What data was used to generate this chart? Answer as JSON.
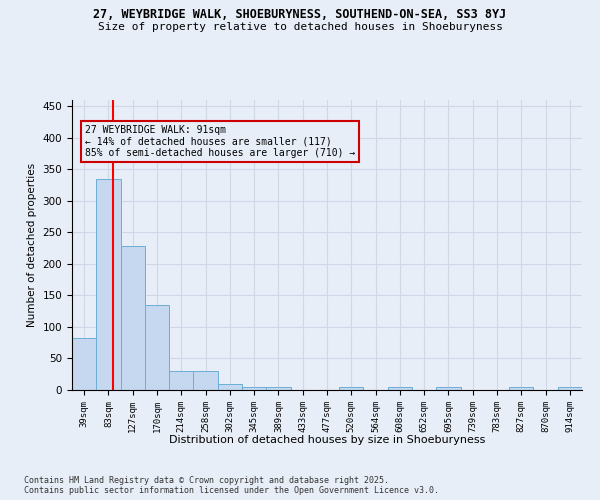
{
  "title_line1": "27, WEYBRIDGE WALK, SHOEBURYNESS, SOUTHEND-ON-SEA, SS3 8YJ",
  "title_line2": "Size of property relative to detached houses in Shoeburyness",
  "xlabel": "Distribution of detached houses by size in Shoeburyness",
  "ylabel": "Number of detached properties",
  "categories": [
    "39sqm",
    "83sqm",
    "127sqm",
    "170sqm",
    "214sqm",
    "258sqm",
    "302sqm",
    "345sqm",
    "389sqm",
    "433sqm",
    "477sqm",
    "520sqm",
    "564sqm",
    "608sqm",
    "652sqm",
    "695sqm",
    "739sqm",
    "783sqm",
    "827sqm",
    "870sqm",
    "914sqm"
  ],
  "values": [
    83,
    335,
    228,
    135,
    30,
    30,
    10,
    5,
    5,
    0,
    0,
    5,
    0,
    5,
    0,
    5,
    0,
    0,
    5,
    0,
    5
  ],
  "bar_color": "#c5d8f0",
  "bar_edge_color": "#6baed6",
  "grid_color": "#d0d8e8",
  "bg_color": "#e8eef8",
  "annotation_text_line1": "27 WEYBRIDGE WALK: 91sqm",
  "annotation_text_line2": "← 14% of detached houses are smaller (117)",
  "annotation_text_line3": "85% of semi-detached houses are larger (710) →",
  "annotation_box_color": "#cc0000",
  "ylim": [
    0,
    460
  ],
  "yticks": [
    0,
    50,
    100,
    150,
    200,
    250,
    300,
    350,
    400,
    450
  ],
  "footer_line1": "Contains HM Land Registry data © Crown copyright and database right 2025.",
  "footer_line2": "Contains public sector information licensed under the Open Government Licence v3.0."
}
